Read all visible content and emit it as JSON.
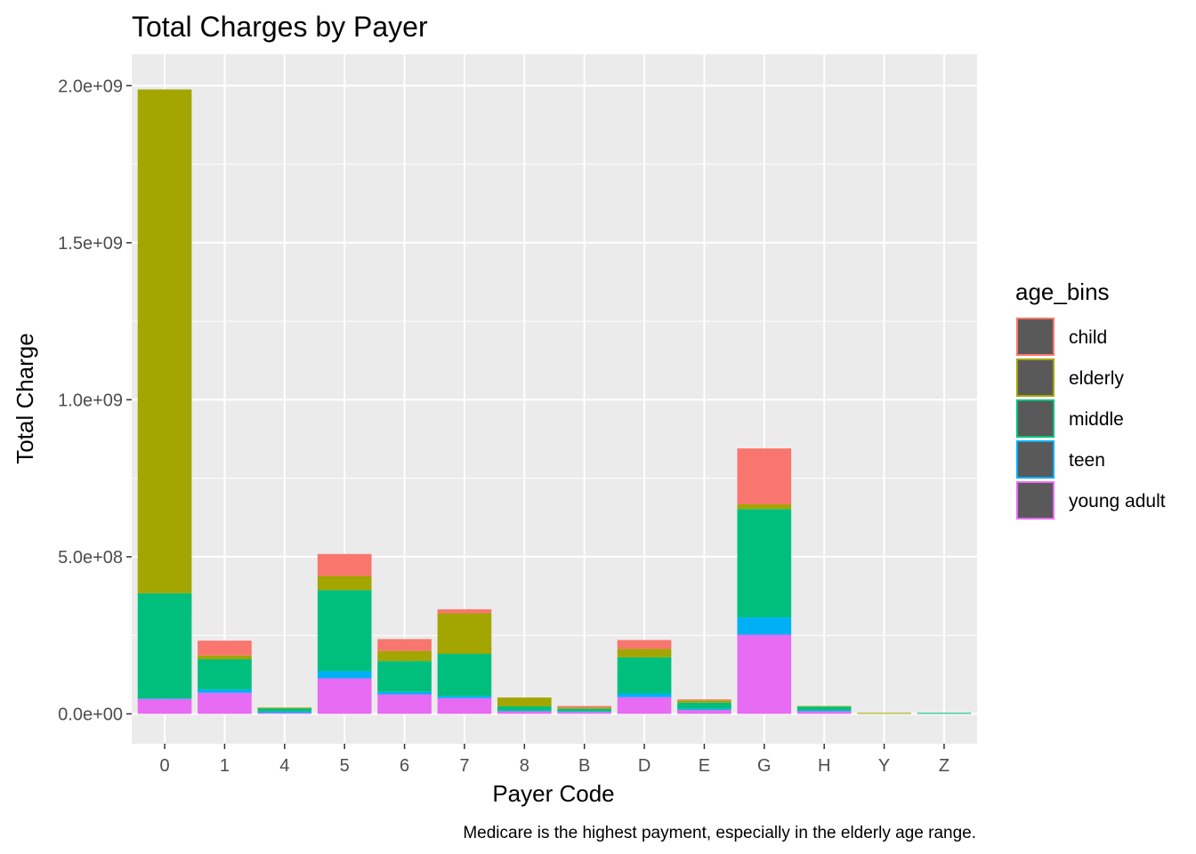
{
  "chart_data": {
    "type": "bar",
    "stacked": true,
    "title": "Total Charges by Payer",
    "xlabel": "Payer Code",
    "ylabel": "Total Charge",
    "caption": "Medicare is the highest payment, especially in the elderly age range.",
    "ylim": [
      -95000000,
      2100000000
    ],
    "yticks": [
      0,
      500000000,
      1000000000,
      1500000000,
      2000000000
    ],
    "ytick_labels": [
      "0.0e+00",
      "5.0e+08",
      "1.0e+09",
      "1.5e+09",
      "2.0e+09"
    ],
    "categories": [
      "0",
      "1",
      "4",
      "5",
      "6",
      "7",
      "8",
      "B",
      "D",
      "E",
      "G",
      "H",
      "Y",
      "Z"
    ],
    "legend": {
      "title": "age_bins",
      "position": "right"
    },
    "grid": true,
    "panel_background": "#EBEBEB",
    "series": [
      {
        "name": "young adult",
        "color": "#E76BF3",
        "values": [
          47000000,
          67000000,
          3000000,
          113000000,
          62000000,
          50000000,
          8000000,
          6000000,
          53000000,
          12000000,
          252000000,
          8000000,
          0,
          0
        ]
      },
      {
        "name": "teen",
        "color": "#00B0F6",
        "values": [
          2000000,
          11000000,
          5000000,
          23000000,
          8000000,
          7000000,
          2000000,
          2000000,
          12000000,
          4000000,
          55000000,
          3000000,
          0,
          0
        ]
      },
      {
        "name": "middle",
        "color": "#00BF7D",
        "values": [
          335000000,
          96000000,
          9000000,
          258000000,
          98000000,
          134000000,
          14000000,
          8000000,
          115000000,
          20000000,
          345000000,
          12000000,
          0,
          3000000
        ]
      },
      {
        "name": "elderly",
        "color": "#A3A500",
        "values": [
          1604000000,
          12000000,
          3000000,
          45000000,
          32000000,
          129000000,
          28000000,
          4000000,
          27000000,
          7000000,
          15000000,
          2000000,
          3000000,
          0
        ]
      },
      {
        "name": "child",
        "color": "#F8766D",
        "values": [
          0,
          47000000,
          0,
          70000000,
          38000000,
          13000000,
          0,
          5000000,
          28000000,
          3000000,
          178000000,
          0,
          0,
          0
        ]
      }
    ],
    "legend_order": [
      "child",
      "elderly",
      "middle",
      "teen",
      "young adult"
    ]
  }
}
